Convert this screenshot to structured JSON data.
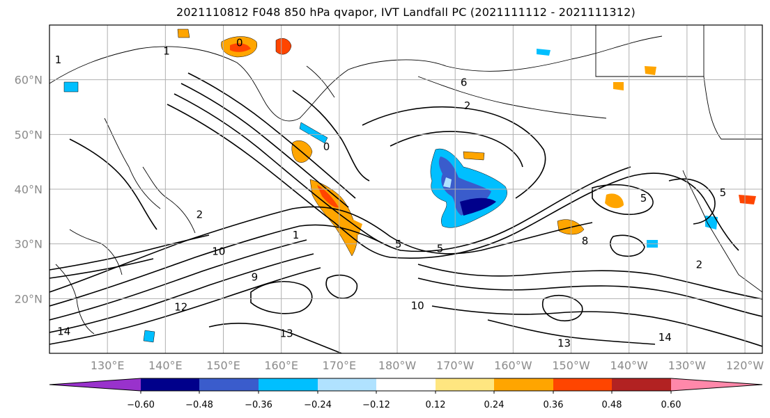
{
  "title": "2021110812 F048 850 hPa qvapor, IVT Landfall PC (2021111112 - 2021111312)",
  "map": {
    "lon_range": [
      120,
      243
    ],
    "lat_range": [
      10,
      70
    ],
    "gridlines": true,
    "lat_ticks": [
      {
        "label": "60°N",
        "lat": 60
      },
      {
        "label": "50°N",
        "lat": 50
      },
      {
        "label": "40°N",
        "lat": 40
      },
      {
        "label": "30°N",
        "lat": 30
      },
      {
        "label": "20°N",
        "lat": 20
      }
    ],
    "lon_ticks": [
      {
        "label": "130°E",
        "lon": 130
      },
      {
        "label": "140°E",
        "lon": 140
      },
      {
        "label": "150°E",
        "lon": 150
      },
      {
        "label": "160°E",
        "lon": 160
      },
      {
        "label": "170°E",
        "lon": 170
      },
      {
        "label": "180°W",
        "lon": 180
      },
      {
        "label": "170°W",
        "lon": 190
      },
      {
        "label": "160°W",
        "lon": 200
      },
      {
        "label": "150°W",
        "lon": 210
      },
      {
        "label": "140°W",
        "lon": 220
      },
      {
        "label": "130°W",
        "lon": 230
      },
      {
        "label": "120°W",
        "lon": 240
      }
    ]
  },
  "colorbar": {
    "colors": [
      "#9932cc",
      "#00008b",
      "#3a5ccc",
      "#00bfff",
      "#b0e2ff",
      "#ffffff",
      "#ffe680",
      "#ffa500",
      "#ff4500",
      "#b22222",
      "#ff88aa"
    ],
    "labels": [
      "−0.60",
      "−0.48",
      "−0.36",
      "−0.24",
      "−0.12",
      "0.12",
      "0.24",
      "0.36",
      "0.48",
      "0.60"
    ]
  },
  "contour_labels": [
    {
      "text": "0",
      "lon": 152.8,
      "lat": 66.1
    },
    {
      "text": "1",
      "lon": 121.5,
      "lat": 63.0
    },
    {
      "text": "1",
      "lon": 140.2,
      "lat": 64.6
    },
    {
      "text": "6",
      "lon": 191.5,
      "lat": 58.9
    },
    {
      "text": "2",
      "lon": 192.1,
      "lat": 54.6
    },
    {
      "text": "0",
      "lon": 167.8,
      "lat": 47.1
    },
    {
      "text": "5",
      "lon": 236.2,
      "lat": 38.7
    },
    {
      "text": "2",
      "lon": 145.9,
      "lat": 34.7
    },
    {
      "text": "5",
      "lon": 187.4,
      "lat": 28.5
    },
    {
      "text": "5",
      "lon": 180.2,
      "lat": 29.3
    },
    {
      "text": "10",
      "lon": 149.2,
      "lat": 28.0
    },
    {
      "text": "1",
      "lon": 162.5,
      "lat": 31.0
    },
    {
      "text": "8",
      "lon": 212.4,
      "lat": 29.9
    },
    {
      "text": "2",
      "lon": 232.1,
      "lat": 25.6
    },
    {
      "text": "13",
      "lon": 160.9,
      "lat": 13.0
    },
    {
      "text": "14",
      "lon": 226.2,
      "lat": 12.3
    },
    {
      "text": "10",
      "lon": 183.5,
      "lat": 18.1
    },
    {
      "text": "9",
      "lon": 155.4,
      "lat": 23.3
    },
    {
      "text": "12",
      "lon": 142.7,
      "lat": 17.8
    },
    {
      "text": "14",
      "lon": 122.5,
      "lat": 13.4
    },
    {
      "text": "13",
      "lon": 208.8,
      "lat": 11.2
    },
    {
      "text": "5",
      "lon": 222.5,
      "lat": 37.7
    }
  ]
}
